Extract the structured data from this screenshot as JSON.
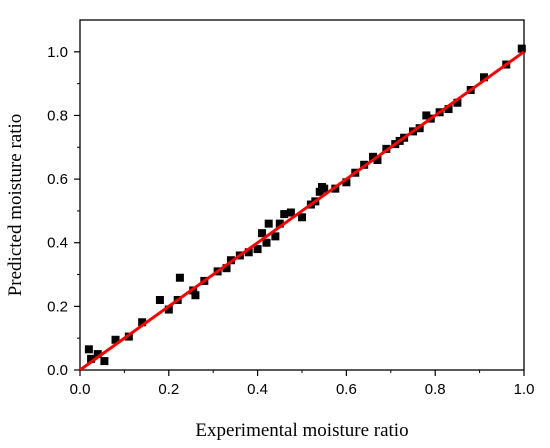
{
  "chart_data": {
    "type": "scatter",
    "title": "",
    "xlabel": "Experimental moisture ratio",
    "ylabel": "Predicted moisture ratio",
    "xlim": [
      0.0,
      1.0
    ],
    "ylim": [
      0.0,
      1.1
    ],
    "x_ticks": [
      0.0,
      0.2,
      0.4,
      0.6,
      0.8,
      1.0
    ],
    "x_tick_labels": [
      "0.0",
      "0.2",
      "0.4",
      "0.6",
      "0.8",
      "1.0"
    ],
    "y_ticks": [
      0.0,
      0.2,
      0.4,
      0.6,
      0.8,
      1.0
    ],
    "y_tick_labels": [
      "0.0",
      "0.2",
      "0.4",
      "0.6",
      "0.8",
      "1.0"
    ],
    "grid": false,
    "legend": "none",
    "series": [
      {
        "kind": "scatter",
        "marker": "square",
        "color": "#000000",
        "points": [
          [
            0.02,
            0.065
          ],
          [
            0.025,
            0.035
          ],
          [
            0.04,
            0.05
          ],
          [
            0.055,
            0.028
          ],
          [
            0.08,
            0.095
          ],
          [
            0.11,
            0.105
          ],
          [
            0.14,
            0.15
          ],
          [
            0.18,
            0.22
          ],
          [
            0.2,
            0.19
          ],
          [
            0.22,
            0.22
          ],
          [
            0.225,
            0.29
          ],
          [
            0.255,
            0.25
          ],
          [
            0.26,
            0.235
          ],
          [
            0.28,
            0.28
          ],
          [
            0.31,
            0.31
          ],
          [
            0.33,
            0.32
          ],
          [
            0.34,
            0.345
          ],
          [
            0.36,
            0.36
          ],
          [
            0.38,
            0.37
          ],
          [
            0.4,
            0.38
          ],
          [
            0.41,
            0.43
          ],
          [
            0.42,
            0.4
          ],
          [
            0.425,
            0.46
          ],
          [
            0.44,
            0.42
          ],
          [
            0.45,
            0.46
          ],
          [
            0.46,
            0.49
          ],
          [
            0.475,
            0.495
          ],
          [
            0.5,
            0.48
          ],
          [
            0.52,
            0.52
          ],
          [
            0.53,
            0.53
          ],
          [
            0.54,
            0.56
          ],
          [
            0.545,
            0.575
          ],
          [
            0.55,
            0.57
          ],
          [
            0.575,
            0.57
          ],
          [
            0.6,
            0.59
          ],
          [
            0.62,
            0.62
          ],
          [
            0.64,
            0.645
          ],
          [
            0.66,
            0.67
          ],
          [
            0.67,
            0.66
          ],
          [
            0.69,
            0.695
          ],
          [
            0.71,
            0.71
          ],
          [
            0.72,
            0.72
          ],
          [
            0.73,
            0.73
          ],
          [
            0.75,
            0.75
          ],
          [
            0.765,
            0.76
          ],
          [
            0.78,
            0.8
          ],
          [
            0.79,
            0.79
          ],
          [
            0.81,
            0.81
          ],
          [
            0.83,
            0.82
          ],
          [
            0.85,
            0.84
          ],
          [
            0.88,
            0.88
          ],
          [
            0.91,
            0.92
          ],
          [
            0.96,
            0.96
          ],
          [
            0.995,
            1.01
          ]
        ]
      },
      {
        "kind": "line",
        "color": "#ff0000",
        "points": [
          [
            0.0,
            0.0
          ],
          [
            1.0,
            1.0
          ]
        ]
      }
    ]
  }
}
